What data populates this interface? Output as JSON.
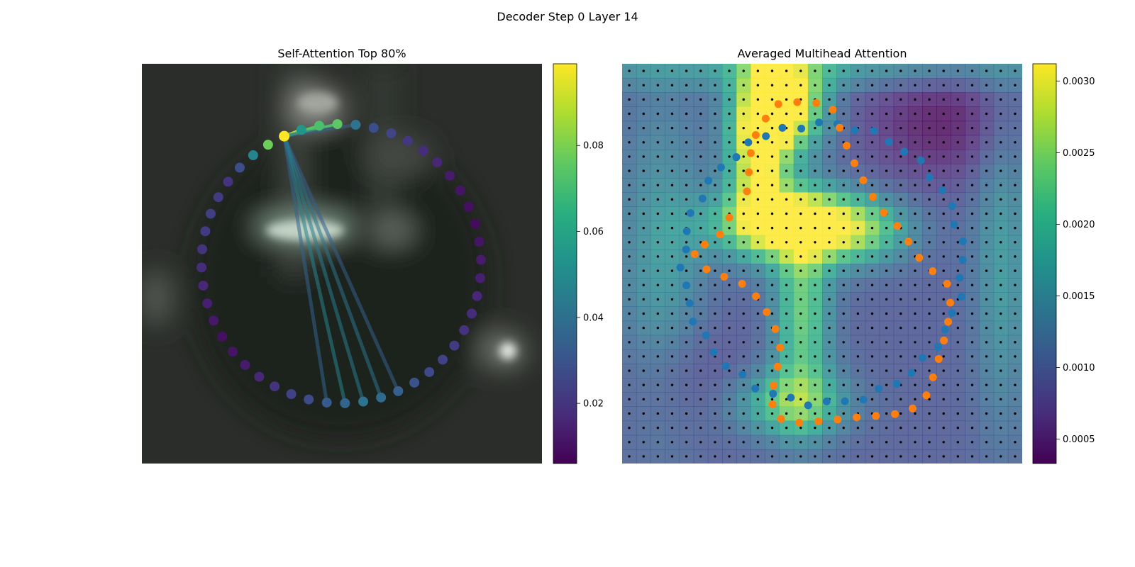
{
  "figure": {
    "title": "Decoder Step 0 Layer 14"
  },
  "chart_data": [
    {
      "type": "scatter",
      "title": "Self-Attention Top 80%",
      "description_kind": "image overlay with attention points",
      "points": {
        "count": 48,
        "highlight_index": 0,
        "values": [
          0.099,
          0.055,
          0.072,
          0.075,
          0.041,
          0.028,
          0.025,
          0.021,
          0.018,
          0.016,
          0.013,
          0.011,
          0.01,
          0.009,
          0.011,
          0.013,
          0.014,
          0.016,
          0.018,
          0.02,
          0.022,
          0.024,
          0.026,
          0.03,
          0.034,
          0.038,
          0.041,
          0.036,
          0.032,
          0.027,
          0.024,
          0.02,
          0.016,
          0.013,
          0.011,
          0.01,
          0.012,
          0.014,
          0.016,
          0.018,
          0.02,
          0.022,
          0.023,
          0.022,
          0.02,
          0.028,
          0.048,
          0.078
        ]
      },
      "connections": [
        {
          "from": 0,
          "to": 1,
          "weight": 0.099
        },
        {
          "from": 0,
          "to": 2,
          "weight": 0.075
        },
        {
          "from": 0,
          "to": 3,
          "weight": 0.072
        },
        {
          "from": 0,
          "to": 4,
          "weight": 0.035
        },
        {
          "from": 0,
          "to": 24,
          "weight": 0.034
        },
        {
          "from": 0,
          "to": 25,
          "weight": 0.042
        },
        {
          "from": 0,
          "to": 26,
          "weight": 0.045
        },
        {
          "from": 0,
          "to": 27,
          "weight": 0.048
        },
        {
          "from": 0,
          "to": 28,
          "weight": 0.036
        }
      ],
      "colorbar": {
        "colormap": "viridis",
        "min": 0.006,
        "max": 0.099,
        "ticks": [
          0.02,
          0.04,
          0.06,
          0.08
        ],
        "tick_labels": [
          "0.02",
          "0.04",
          "0.06",
          "0.08"
        ]
      }
    },
    {
      "type": "heatmap",
      "title": "Averaged Multihead Attention",
      "grid": {
        "rows": 28,
        "cols": 28
      },
      "series": [
        {
          "color": "#1f77b4",
          "shape": "ring",
          "count": 48
        },
        {
          "color": "#ff7f0e",
          "shape": "inner-curve",
          "count": 48
        }
      ],
      "colorbar": {
        "colormap": "viridis",
        "min": 0.00033,
        "max": 0.00312,
        "ticks": [
          0.0005,
          0.001,
          0.0015,
          0.002,
          0.0025,
          0.003
        ],
        "tick_labels": [
          "0.0005",
          "0.0010",
          "0.0015",
          "0.0020",
          "0.0025",
          "0.0030"
        ]
      }
    }
  ]
}
